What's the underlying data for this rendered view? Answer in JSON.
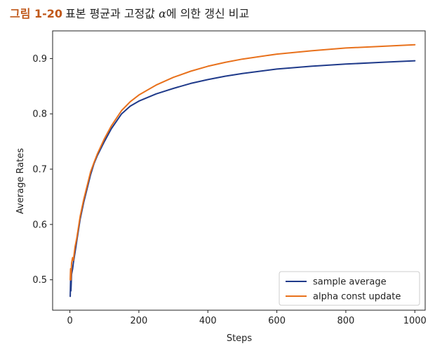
{
  "caption": {
    "figure_number": "그림 1-20",
    "text_before": "표본 평균과 고정값 ",
    "symbol": "α",
    "text_after": "에 의한 갱신 비교"
  },
  "chart_data": {
    "type": "line",
    "xlabel": "Steps",
    "ylabel": "Average Rates",
    "xlim": [
      -50,
      1030
    ],
    "ylim": [
      0.445,
      0.95
    ],
    "xticks": [
      0,
      200,
      400,
      600,
      800,
      1000
    ],
    "yticks": [
      0.5,
      0.6,
      0.7,
      0.8,
      0.9
    ],
    "xtick_labels": [
      "0",
      "200",
      "400",
      "600",
      "800",
      "1000"
    ],
    "ytick_labels": [
      "0.5",
      "0.6",
      "0.7",
      "0.8",
      "0.9"
    ],
    "legend_position": "lower-right",
    "grid": false,
    "series": [
      {
        "name": "sample average",
        "color": "#1f3a8a",
        "x": [
          1,
          2,
          3,
          5,
          8,
          10,
          15,
          20,
          30,
          40,
          50,
          60,
          70,
          80,
          100,
          120,
          150,
          175,
          200,
          250,
          300,
          350,
          400,
          450,
          500,
          600,
          700,
          800,
          900,
          1000
        ],
        "y": [
          0.47,
          0.5,
          0.48,
          0.51,
          0.52,
          0.53,
          0.55,
          0.57,
          0.61,
          0.64,
          0.665,
          0.69,
          0.71,
          0.725,
          0.75,
          0.773,
          0.8,
          0.814,
          0.823,
          0.836,
          0.846,
          0.855,
          0.862,
          0.868,
          0.873,
          0.881,
          0.886,
          0.89,
          0.893,
          0.896
        ]
      },
      {
        "name": "alpha const update",
        "color": "#e8711c",
        "x": [
          1,
          2,
          3,
          5,
          8,
          10,
          15,
          20,
          30,
          40,
          50,
          60,
          70,
          80,
          100,
          120,
          150,
          175,
          200,
          250,
          300,
          350,
          400,
          450,
          500,
          600,
          700,
          800,
          900,
          1000
        ],
        "y": [
          0.5,
          0.52,
          0.5,
          0.53,
          0.54,
          0.535,
          0.56,
          0.575,
          0.615,
          0.645,
          0.67,
          0.695,
          0.712,
          0.728,
          0.755,
          0.778,
          0.806,
          0.822,
          0.834,
          0.852,
          0.866,
          0.877,
          0.886,
          0.893,
          0.899,
          0.908,
          0.914,
          0.919,
          0.922,
          0.925
        ]
      }
    ]
  }
}
